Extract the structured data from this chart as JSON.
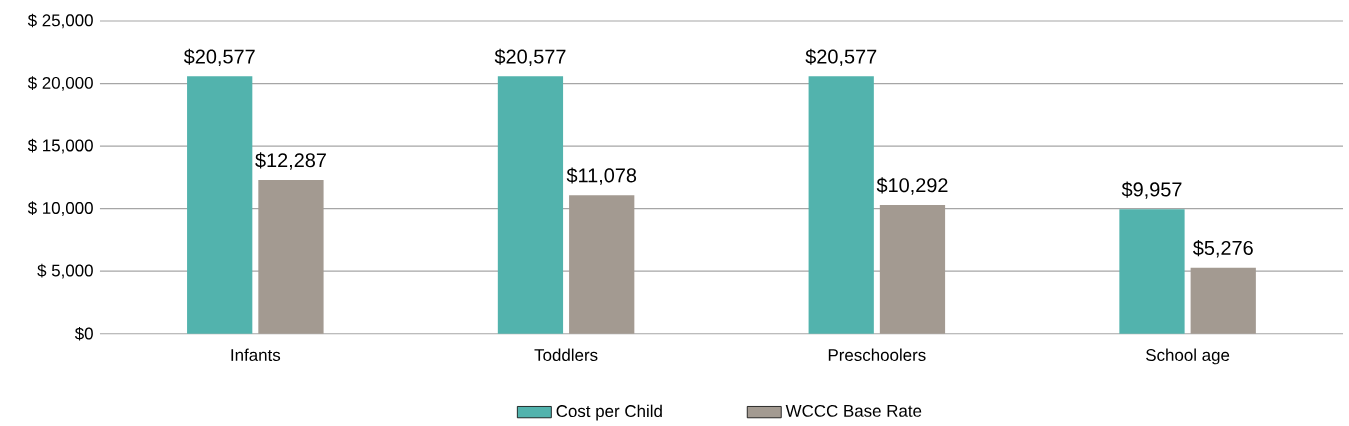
{
  "chart_data": {
    "type": "bar",
    "categories": [
      "Infants",
      "Toddlers",
      "Preschoolers",
      "School age"
    ],
    "series": [
      {
        "name": "Cost per Child",
        "color": "#52b3ad",
        "values": [
          20577,
          20577,
          20577,
          9957
        ],
        "value_labels": [
          "$20,577",
          "$20,577",
          "$20,577",
          "$9,957"
        ]
      },
      {
        "name": "WCCC Base Rate",
        "color": "#a39a91",
        "values": [
          12287,
          11078,
          10292,
          5276
        ],
        "value_labels": [
          "$12,287",
          "$11,078",
          "$10,292",
          "$5,276"
        ]
      }
    ],
    "ylim": [
      0,
      25000
    ],
    "yticks": [
      {
        "value": 0,
        "label": "$0"
      },
      {
        "value": 5000,
        "label": "$ 5,000"
      },
      {
        "value": 10000,
        "label": "$ 10,000"
      },
      {
        "value": 15000,
        "label": "$ 15,000"
      },
      {
        "value": 20000,
        "label": "$ 20,000"
      },
      {
        "value": 25000,
        "label": "$ 25,000"
      }
    ],
    "grid": "y",
    "legend": "bottom"
  }
}
